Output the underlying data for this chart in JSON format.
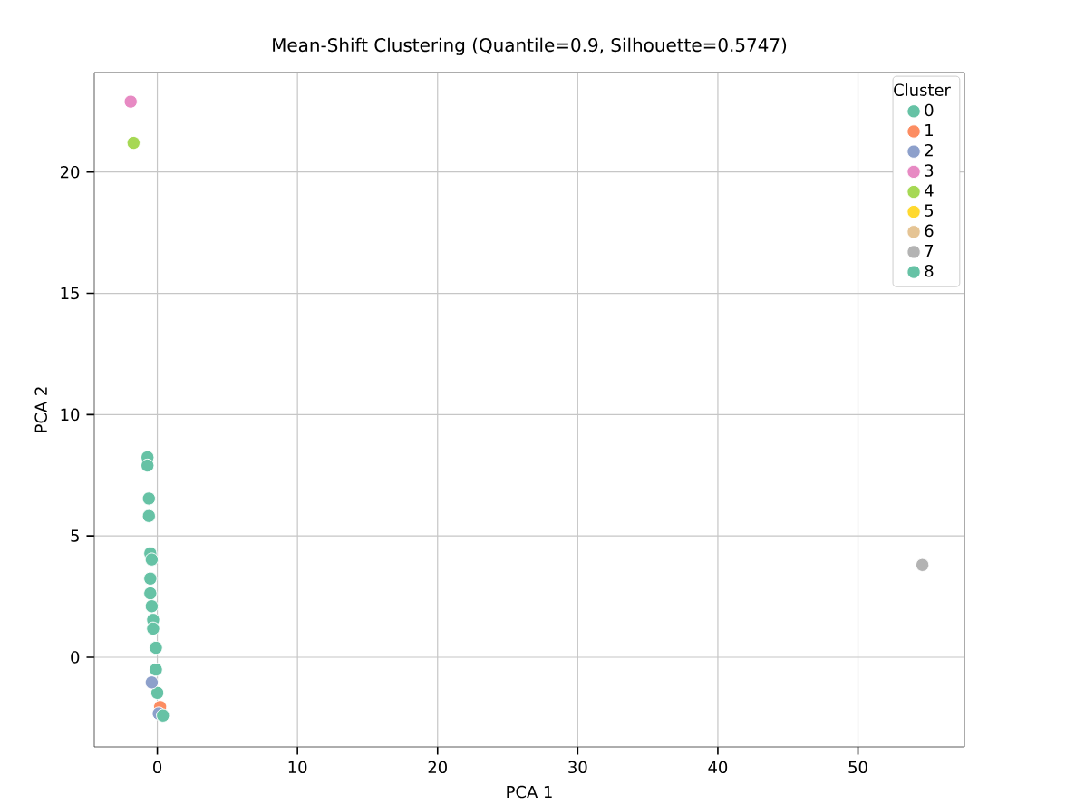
{
  "chart_data": {
    "type": "scatter",
    "title": "Mean-Shift Clustering (Quantile=0.9, Silhouette=0.5747)",
    "xlabel": "PCA 1",
    "ylabel": "PCA 2",
    "legend_title": "Cluster",
    "xlim": [
      -4.5,
      57.6
    ],
    "ylim": [
      -3.7,
      24.1
    ],
    "xticks": [
      0,
      10,
      20,
      30,
      40,
      50
    ],
    "yticks": [
      0,
      5,
      10,
      15,
      20
    ],
    "grid": true,
    "legend": "top right",
    "series": [
      {
        "name": "0",
        "color": "#66c2a5",
        "x": [
          -0.7,
          -0.7,
          -0.6,
          -0.6,
          -0.5,
          -0.4,
          -0.5,
          -0.5,
          -0.4,
          -0.3,
          -0.3,
          -0.1,
          -0.1,
          0.0
        ],
        "values": [
          8.24,
          7.9,
          6.54,
          5.82,
          4.28,
          4.03,
          3.24,
          2.63,
          2.1,
          1.54,
          1.18,
          0.39,
          -0.51,
          -1.47
        ]
      },
      {
        "name": "1",
        "color": "#fc8d62",
        "x": [
          0.2
        ],
        "values": [
          -2.05
        ]
      },
      {
        "name": "2",
        "color": "#8da0cb",
        "x": [
          -0.4,
          0.1
        ],
        "values": [
          -1.04,
          -2.32
        ]
      },
      {
        "name": "3",
        "color": "#e78ac3",
        "x": [
          -1.9
        ],
        "values": [
          22.9
        ]
      },
      {
        "name": "4",
        "color": "#a6d854",
        "x": [
          -1.7
        ],
        "values": [
          21.2
        ]
      },
      {
        "name": "5",
        "color": "#ffd92f"
      },
      {
        "name": "6",
        "color": "#e5c494"
      },
      {
        "name": "7",
        "color": "#b3b3b3",
        "x": [
          54.6
        ],
        "values": [
          3.8
        ]
      },
      {
        "name": "8",
        "color": "#66c2a5",
        "x": [
          0.4
        ],
        "values": [
          -2.4
        ]
      }
    ]
  }
}
